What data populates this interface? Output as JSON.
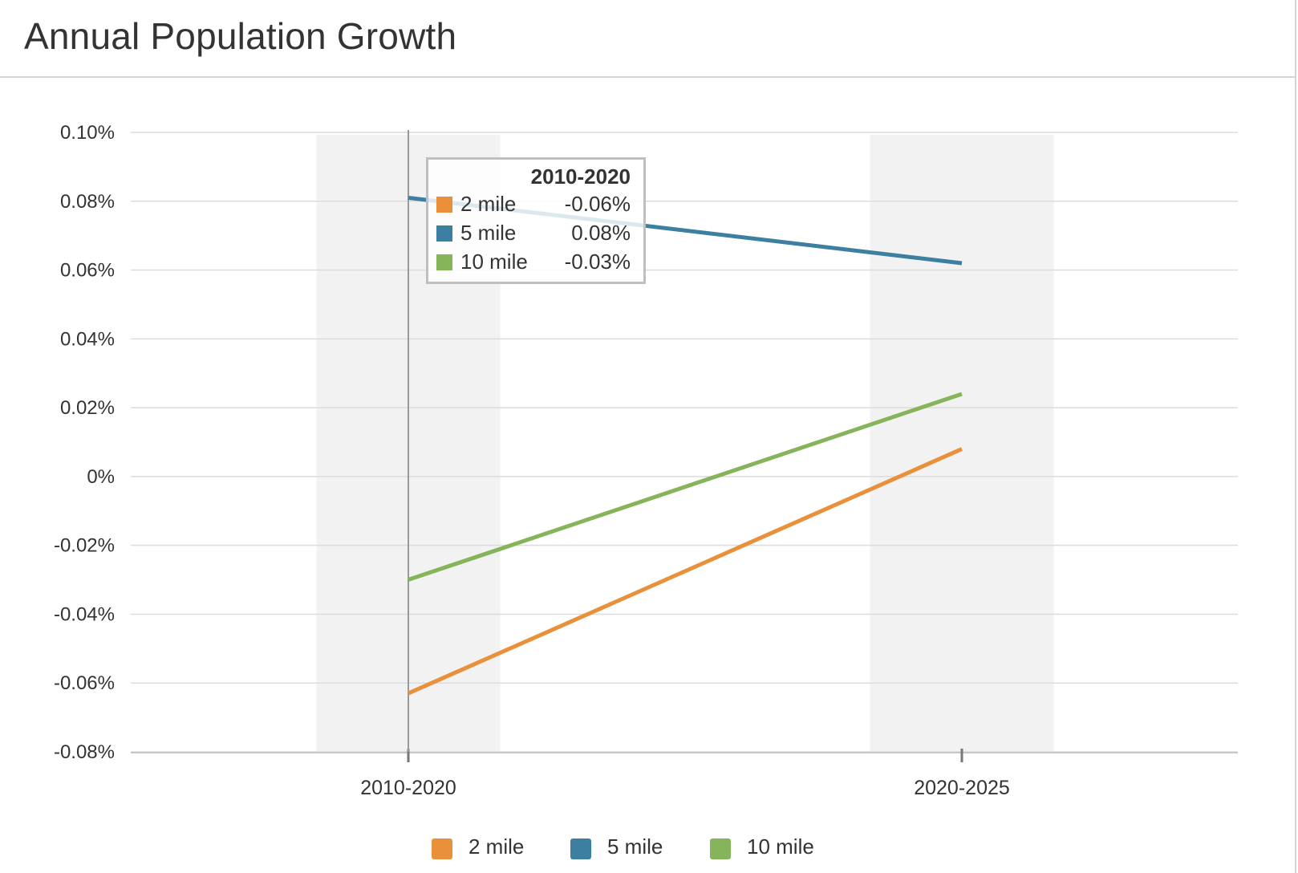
{
  "title": "Annual Population Growth",
  "chart_data": {
    "type": "line",
    "title": "Annual Population Growth",
    "categories": [
      "2010-2020",
      "2020-2025"
    ],
    "series": [
      {
        "name": "2 mile",
        "values": [
          -0.063,
          0.008
        ],
        "color": "#e8913a"
      },
      {
        "name": "5 mile",
        "values": [
          0.081,
          0.062
        ],
        "color": "#3d7fa0"
      },
      {
        "name": "10 mile",
        "values": [
          -0.03,
          0.024
        ],
        "color": "#86b45a"
      }
    ],
    "yticks": [
      "0.10%",
      "0.08%",
      "0.06%",
      "0.04%",
      "0.02%",
      "0%",
      "-0.02%",
      "-0.04%",
      "-0.06%",
      "-0.08%"
    ],
    "ylim": [
      -0.08,
      0.1
    ],
    "grid": true,
    "legend": "bottom-center"
  },
  "tooltip": {
    "title": "2010-2020",
    "rows": [
      {
        "label": "2 mile",
        "value": "-0.06%",
        "color": "#e8913a"
      },
      {
        "label": "5 mile",
        "value": "0.08%",
        "color": "#3d7fa0"
      },
      {
        "label": "10 mile",
        "value": "-0.03%",
        "color": "#86b45a"
      }
    ]
  },
  "legend": {
    "items": [
      {
        "label": "2 mile",
        "color": "#e8913a"
      },
      {
        "label": "5 mile",
        "color": "#3d7fa0"
      },
      {
        "label": "10 mile",
        "color": "#86b45a"
      }
    ]
  }
}
